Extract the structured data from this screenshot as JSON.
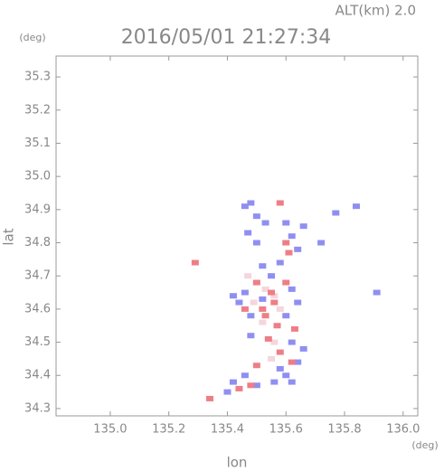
{
  "chart_data": {
    "type": "scatter",
    "title": "2016/05/01 21:27:34",
    "subtitle": "ALT(km)  2.0",
    "y_unit": "(deg)",
    "x_unit": "(deg)",
    "y_label": "lat",
    "x_label": "lon",
    "xlim": [
      134.815,
      136.05
    ],
    "ylim": [
      34.278,
      35.363
    ],
    "xticks": [
      {
        "value": 135.0,
        "label": "135.0"
      },
      135.2,
      135.4,
      135.6,
      135.8,
      {
        "value": 136.0,
        "label": "136.0"
      }
    ],
    "yticks": [
      34.3,
      34.4,
      34.5,
      34.6,
      34.7,
      34.8,
      34.9,
      {
        "value": 35.0,
        "label": "35.0"
      },
      35.1,
      35.2,
      35.3
    ],
    "grid": false,
    "series": [
      {
        "color": "#f4d6dc",
        "x": [
          135.5,
          135.53,
          135.56,
          135.49,
          135.55,
          135.52,
          135.56,
          135.55,
          135.58,
          135.47
        ],
        "values": [
          34.68,
          34.66,
          34.64,
          34.62,
          34.7,
          34.56,
          34.5,
          34.45,
          34.6,
          34.7
        ]
      },
      {
        "color": "#8f8ff2",
        "x": [
          135.48,
          135.46,
          135.5,
          135.53,
          135.47,
          135.5,
          135.6,
          135.62,
          135.64,
          135.66,
          135.72,
          135.84,
          135.77,
          135.46,
          135.44,
          135.48,
          135.62,
          135.64,
          135.6,
          135.55,
          135.52,
          135.62,
          135.64,
          135.58,
          135.46,
          135.42,
          135.4,
          135.5,
          135.56,
          135.62,
          135.91,
          135.48,
          135.66,
          135.52,
          135.58,
          135.42,
          135.6
        ],
        "values": [
          34.92,
          34.91,
          34.88,
          34.86,
          34.83,
          34.8,
          34.86,
          34.82,
          34.78,
          34.85,
          34.8,
          34.91,
          34.89,
          34.65,
          34.62,
          34.58,
          34.66,
          34.62,
          34.58,
          34.7,
          34.73,
          34.5,
          34.44,
          34.42,
          34.4,
          34.38,
          34.35,
          34.37,
          34.38,
          34.38,
          34.65,
          34.52,
          34.48,
          34.63,
          34.74,
          34.64,
          34.4
        ]
      },
      {
        "color": "#ee7e86",
        "x": [
          135.58,
          135.6,
          135.61,
          135.55,
          135.52,
          135.57,
          135.54,
          135.58,
          135.62,
          135.5,
          135.48,
          135.44,
          135.53,
          135.46,
          135.29,
          135.34,
          135.5,
          135.56,
          135.63,
          135.6
        ],
        "values": [
          34.92,
          34.8,
          34.77,
          34.65,
          34.6,
          34.55,
          34.51,
          34.47,
          34.44,
          34.43,
          34.37,
          34.36,
          34.58,
          34.6,
          34.74,
          34.33,
          34.68,
          34.62,
          34.54,
          34.68
        ]
      }
    ]
  }
}
